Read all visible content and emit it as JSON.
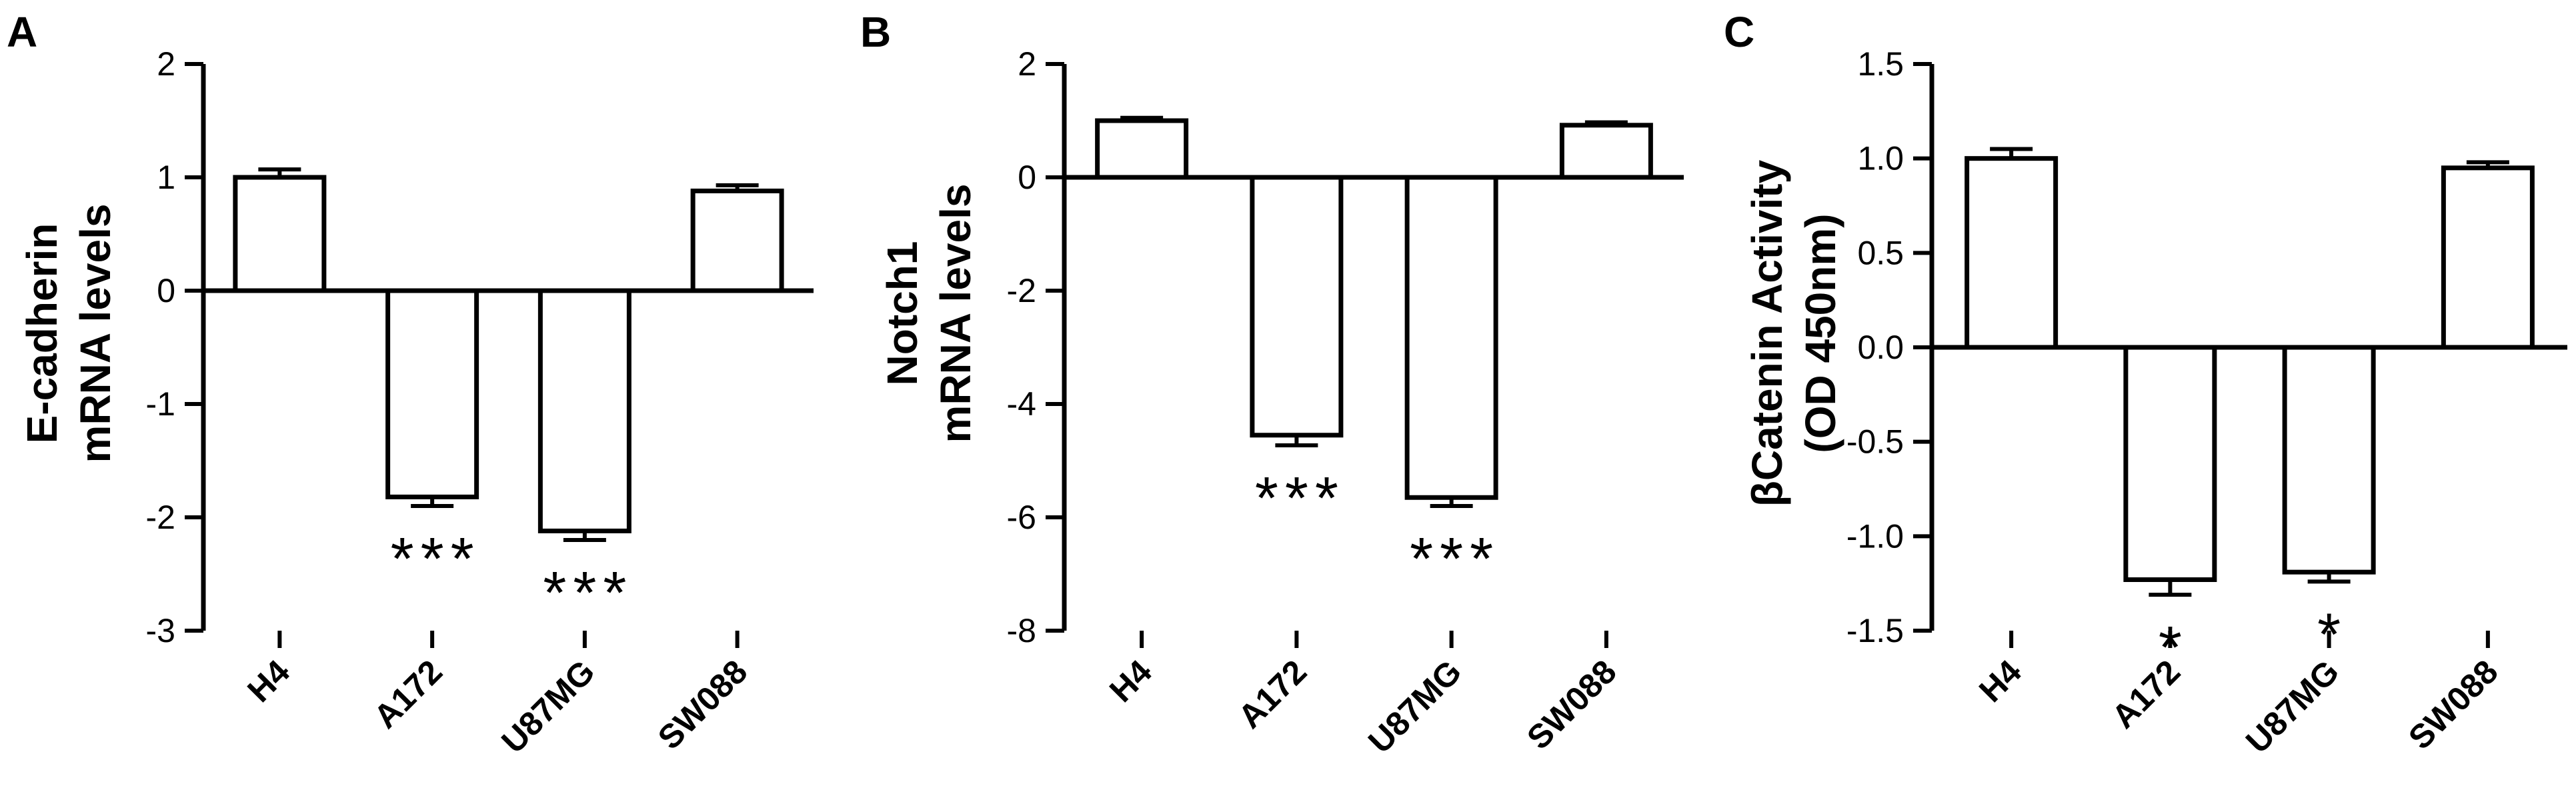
{
  "chart_data": [
    {
      "type": "bar",
      "panel": "A",
      "ylabel_lines": [
        "E-cadherin",
        "mRNA levels"
      ],
      "categories": [
        "H4",
        "A172",
        "U87MG",
        "SW088"
      ],
      "values": [
        1.0,
        -1.82,
        -2.12,
        0.88
      ],
      "errors": [
        0.07,
        0.08,
        0.08,
        0.05
      ],
      "significance": [
        "",
        "***",
        "***",
        ""
      ],
      "yticks": [
        "2",
        "1",
        "0",
        "-1",
        "-2",
        "-3"
      ],
      "ytick_values": [
        2,
        1,
        0,
        -1,
        -2,
        -3
      ],
      "ylim": [
        -3,
        2
      ],
      "grid": false,
      "legend": "none"
    },
    {
      "type": "bar",
      "panel": "B",
      "ylabel_lines": [
        "Notch1",
        "mRNA levels"
      ],
      "categories": [
        "H4",
        "A172",
        "U87MG",
        "SW088"
      ],
      "values": [
        1.0,
        -4.55,
        -5.65,
        0.92
      ],
      "errors": [
        0.05,
        0.18,
        0.15,
        0.05
      ],
      "significance": [
        "",
        "***",
        "***",
        ""
      ],
      "yticks": [
        "2",
        "0",
        "-2",
        "-4",
        "-6",
        "-8"
      ],
      "ytick_values": [
        2,
        0,
        -2,
        -4,
        -6,
        -8
      ],
      "ylim": [
        -8,
        2
      ],
      "grid": false,
      "legend": "none"
    },
    {
      "type": "bar",
      "panel": "C",
      "ylabel_lines": [
        "βCatenin Activity",
        "(OD 450nm)"
      ],
      "categories": [
        "H4",
        "A172",
        "U87MG",
        "SW088"
      ],
      "values": [
        1.0,
        -1.23,
        -1.19,
        0.95
      ],
      "errors": [
        0.05,
        0.08,
        0.05,
        0.03
      ],
      "significance": [
        "",
        "*",
        "*",
        ""
      ],
      "yticks": [
        "1.5",
        "1.0",
        "0.5",
        "0.0",
        "-0.5",
        "-1.0",
        "-1.5"
      ],
      "ytick_values": [
        1.5,
        1.0,
        0.5,
        0.0,
        -0.5,
        -1.0,
        -1.5
      ],
      "ylim": [
        -1.5,
        1.5
      ],
      "grid": false,
      "legend": "none"
    }
  ]
}
